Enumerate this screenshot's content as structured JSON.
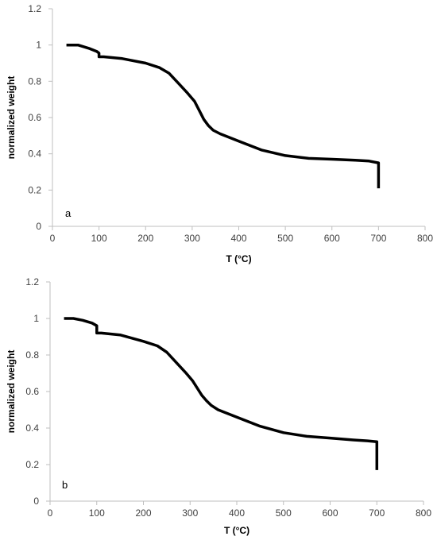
{
  "chart_data": [
    {
      "type": "line",
      "panel_label": "a",
      "xlabel": "T (°C)",
      "ylabel": "normalized weight",
      "xlim": [
        0,
        800
      ],
      "ylim": [
        0,
        1.2
      ],
      "xticks": [
        "0",
        "100",
        "200",
        "300",
        "400",
        "500",
        "600",
        "700",
        "800"
      ],
      "yticks": [
        "0",
        "0.2",
        "0.4",
        "0.6",
        "0.8",
        "1",
        "1.2"
      ],
      "grid": false,
      "legend": "none",
      "series": [
        {
          "color": "#000000",
          "x": [
            30,
            55,
            80,
            95,
            100,
            100,
            110,
            150,
            200,
            230,
            250,
            270,
            290,
            305,
            315,
            325,
            335,
            345,
            360,
            400,
            450,
            500,
            550,
            600,
            650,
            680,
            700,
            700
          ],
          "y": [
            1.0,
            1.0,
            0.98,
            0.965,
            0.955,
            0.935,
            0.935,
            0.925,
            0.9,
            0.875,
            0.845,
            0.79,
            0.735,
            0.69,
            0.64,
            0.59,
            0.555,
            0.53,
            0.51,
            0.47,
            0.42,
            0.39,
            0.375,
            0.37,
            0.365,
            0.36,
            0.35,
            0.21
          ]
        }
      ]
    },
    {
      "type": "line",
      "panel_label": "b",
      "xlabel": "T (°C)",
      "ylabel": "normalized weight",
      "xlim": [
        0,
        800
      ],
      "ylim": [
        0,
        1.2
      ],
      "xticks": [
        "0",
        "100",
        "200",
        "300",
        "400",
        "500",
        "600",
        "700",
        "800"
      ],
      "yticks": [
        "0",
        "0.2",
        "0.4",
        "0.6",
        "0.8",
        "1",
        "1.2"
      ],
      "grid": false,
      "legend": "none",
      "series": [
        {
          "color": "#000000",
          "x": [
            30,
            50,
            70,
            90,
            100,
            100,
            110,
            150,
            200,
            230,
            250,
            270,
            290,
            305,
            315,
            325,
            335,
            345,
            360,
            400,
            450,
            500,
            550,
            600,
            650,
            680,
            700,
            700
          ],
          "y": [
            1.0,
            1.0,
            0.99,
            0.975,
            0.96,
            0.92,
            0.92,
            0.91,
            0.875,
            0.85,
            0.815,
            0.76,
            0.705,
            0.66,
            0.62,
            0.58,
            0.55,
            0.525,
            0.5,
            0.46,
            0.41,
            0.375,
            0.355,
            0.345,
            0.335,
            0.33,
            0.325,
            0.17
          ]
        }
      ]
    }
  ]
}
